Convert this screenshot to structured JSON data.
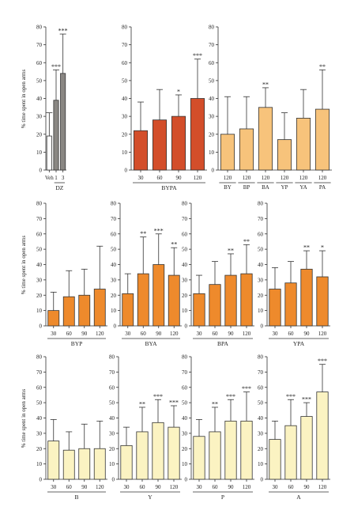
{
  "ylabel": "% time spent in open arms",
  "colors": {
    "white": "#ffffff",
    "gray": "#8a8783",
    "red": "#d34e2a",
    "light_orange": "#f7c37b",
    "orange": "#ee8a2c",
    "cream": "#fbf3c2",
    "axis": "#333333"
  },
  "chart_data": [
    {
      "type": "bar",
      "panel": "row1-a",
      "ylim": [
        0,
        80
      ],
      "yticks": [
        0,
        10,
        20,
        30,
        40,
        50,
        60,
        70,
        80
      ],
      "ylabel": "% time spent in open arms",
      "categories": [
        "Veh",
        "1",
        "3"
      ],
      "values": [
        19,
        39,
        54
      ],
      "errors": [
        13,
        17,
        22
      ],
      "stars": [
        "",
        "***",
        "***"
      ],
      "bar_colors": [
        "white",
        "gray",
        "gray"
      ],
      "groups": [
        {
          "label": "DZ",
          "from": 1,
          "to": 2
        }
      ]
    },
    {
      "type": "bar",
      "panel": "row1-b",
      "ylim": [
        0,
        80
      ],
      "categories": [
        "30",
        "60",
        "90",
        "120"
      ],
      "values": [
        22,
        28,
        30,
        40
      ],
      "errors": [
        16,
        17,
        12,
        22
      ],
      "stars": [
        "",
        "",
        "*",
        "***"
      ],
      "bar_colors": [
        "red",
        "red",
        "red",
        "red"
      ],
      "groups": [
        {
          "label": "BYPA",
          "from": 0,
          "to": 3
        }
      ]
    },
    {
      "type": "bar",
      "panel": "row1-c",
      "ylim": [
        0,
        80
      ],
      "categories": [
        "120",
        "120",
        "120",
        "120",
        "120",
        "120"
      ],
      "sublabels": [
        "BY",
        "BP",
        "BA",
        "YP",
        "YA",
        "PA"
      ],
      "values": [
        20,
        23,
        35,
        17,
        29,
        34
      ],
      "errors": [
        21,
        18,
        11,
        15,
        16,
        22
      ],
      "stars": [
        "",
        "",
        "**",
        "",
        "",
        "**"
      ],
      "bar_colors": [
        "light_orange",
        "light_orange",
        "light_orange",
        "light_orange",
        "light_orange",
        "light_orange"
      ],
      "groups": []
    },
    {
      "type": "bar",
      "panel": "row2-a",
      "ylim": [
        0,
        80
      ],
      "ylabel": "% time spent in open arms",
      "categories": [
        "30",
        "60",
        "90",
        "120"
      ],
      "values": [
        10,
        19,
        20,
        24
      ],
      "errors": [
        12,
        17,
        17,
        28
      ],
      "stars": [
        "",
        "",
        "",
        ""
      ],
      "bar_colors": [
        "orange",
        "orange",
        "orange",
        "orange"
      ],
      "groups": [
        {
          "label": "BYP",
          "from": 0,
          "to": 3
        }
      ]
    },
    {
      "type": "bar",
      "panel": "row2-b",
      "ylim": [
        0,
        80
      ],
      "categories": [
        "30",
        "60",
        "90",
        "120"
      ],
      "values": [
        21,
        34,
        40,
        33
      ],
      "errors": [
        13,
        24,
        20,
        18
      ],
      "stars": [
        "",
        "**",
        "***",
        "**"
      ],
      "bar_colors": [
        "orange",
        "orange",
        "orange",
        "orange"
      ],
      "groups": [
        {
          "label": "BYA",
          "from": 0,
          "to": 3
        }
      ]
    },
    {
      "type": "bar",
      "panel": "row2-c",
      "ylim": [
        0,
        80
      ],
      "categories": [
        "30",
        "60",
        "90",
        "120"
      ],
      "values": [
        21,
        27,
        33,
        34
      ],
      "errors": [
        12,
        15,
        14,
        19
      ],
      "stars": [
        "",
        "",
        "**",
        "**"
      ],
      "bar_colors": [
        "orange",
        "orange",
        "orange",
        "orange"
      ],
      "groups": [
        {
          "label": "BPA",
          "from": 0,
          "to": 3
        }
      ]
    },
    {
      "type": "bar",
      "panel": "row2-d",
      "ylim": [
        0,
        80
      ],
      "categories": [
        "30",
        "60",
        "90",
        "120"
      ],
      "values": [
        24,
        28,
        37,
        32
      ],
      "errors": [
        14,
        14,
        12,
        17
      ],
      "stars": [
        "",
        "",
        "**",
        "*"
      ],
      "bar_colors": [
        "orange",
        "orange",
        "orange",
        "orange"
      ],
      "groups": [
        {
          "label": "YPA",
          "from": 0,
          "to": 3
        }
      ]
    },
    {
      "type": "bar",
      "panel": "row3-a",
      "ylim": [
        0,
        80
      ],
      "ylabel": "% time spent in open arms",
      "categories": [
        "30",
        "60",
        "90",
        "120"
      ],
      "values": [
        25,
        19,
        20,
        20
      ],
      "errors": [
        14,
        12,
        16,
        18
      ],
      "stars": [
        "",
        "",
        "",
        ""
      ],
      "bar_colors": [
        "cream",
        "cream",
        "cream",
        "cream"
      ],
      "groups": [
        {
          "label": "B",
          "from": 0,
          "to": 3
        }
      ]
    },
    {
      "type": "bar",
      "panel": "row3-b",
      "ylim": [
        0,
        80
      ],
      "categories": [
        "30",
        "60",
        "90",
        "120"
      ],
      "values": [
        22,
        31,
        37,
        34
      ],
      "errors": [
        12,
        16,
        15,
        14
      ],
      "stars": [
        "",
        "**",
        "***",
        "***"
      ],
      "bar_colors": [
        "cream",
        "cream",
        "cream",
        "cream"
      ],
      "groups": [
        {
          "label": "Y",
          "from": 0,
          "to": 3
        }
      ]
    },
    {
      "type": "bar",
      "panel": "row3-c",
      "ylim": [
        0,
        80
      ],
      "categories": [
        "30",
        "60",
        "90",
        "120"
      ],
      "values": [
        28,
        31,
        38,
        38
      ],
      "errors": [
        11,
        16,
        14,
        19
      ],
      "stars": [
        "",
        "**",
        "***",
        "***"
      ],
      "bar_colors": [
        "cream",
        "cream",
        "cream",
        "cream"
      ],
      "groups": [
        {
          "label": "P",
          "from": 0,
          "to": 3
        }
      ]
    },
    {
      "type": "bar",
      "panel": "row3-d",
      "ylim": [
        0,
        80
      ],
      "categories": [
        "30",
        "60",
        "90",
        "120"
      ],
      "values": [
        26,
        35,
        41,
        57
      ],
      "errors": [
        12,
        17,
        9,
        18
      ],
      "stars": [
        "",
        "***",
        "***",
        "***"
      ],
      "bar_colors": [
        "cream",
        "cream",
        "cream",
        "cream"
      ],
      "groups": [
        {
          "label": "A",
          "from": 0,
          "to": 3
        }
      ]
    }
  ]
}
